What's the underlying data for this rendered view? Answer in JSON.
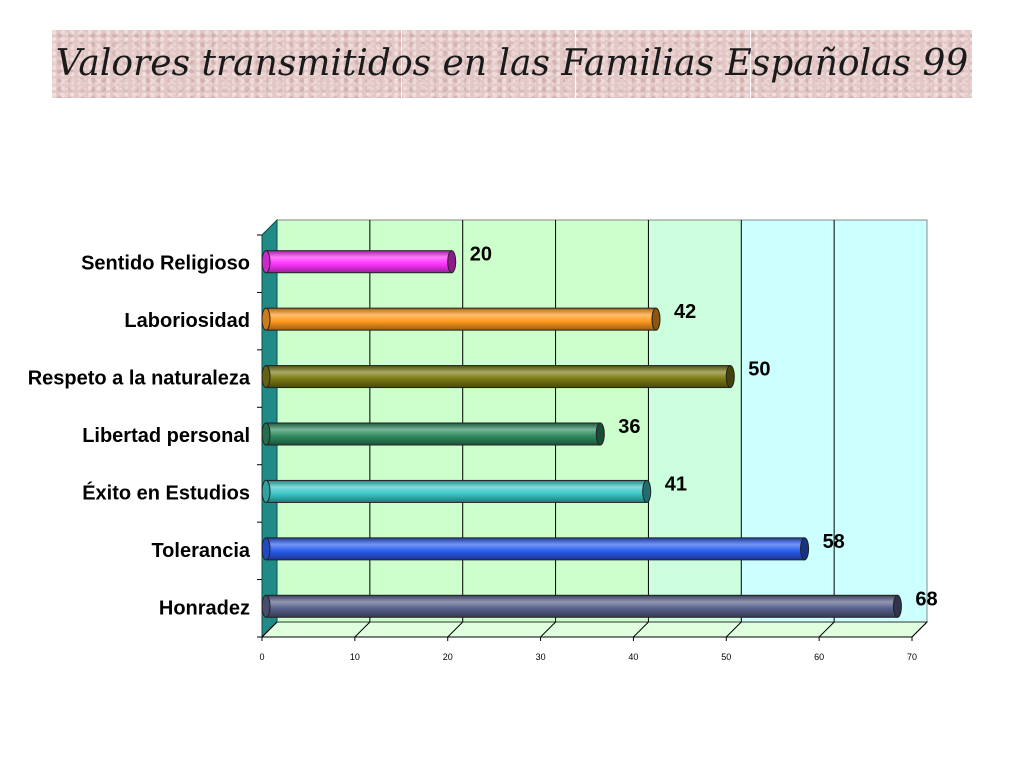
{
  "slide": {
    "title": "Valores transmitidos en las Familias Españolas 99"
  },
  "chart_data": {
    "type": "bar",
    "orientation": "horizontal",
    "style": "3d-cylinder",
    "categories": [
      "Sentido Religioso",
      "Laboriosidad",
      "Respeto a la naturaleza",
      "Libertad personal",
      "Éxito en Estudios",
      "Tolerancia",
      "Honradez"
    ],
    "values": [
      20,
      42,
      50,
      36,
      41,
      58,
      68
    ],
    "value_labels": [
      "20",
      "42",
      "50",
      "36",
      "41",
      "58",
      "68"
    ],
    "bar_colors": [
      "#ff33ff",
      "#ff9a1f",
      "#7a7a14",
      "#2e8a5e",
      "#3cc8c8",
      "#2a5cf0",
      "#58608a"
    ],
    "xlim": [
      0,
      70
    ],
    "xticks": [
      "0",
      "10",
      "20",
      "30",
      "40",
      "50",
      "60",
      "70"
    ],
    "grid": true,
    "legend": "none",
    "title": "",
    "xlabel": "",
    "ylabel": ""
  }
}
